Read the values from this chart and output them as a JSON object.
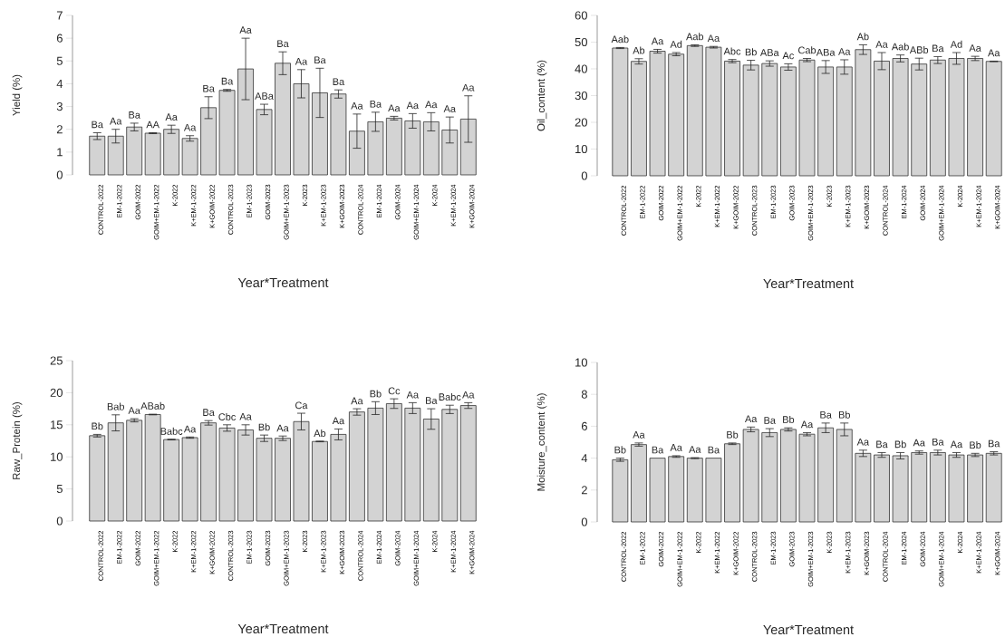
{
  "chart_data": [
    {
      "type": "bar",
      "ylabel": "Yield (%)",
      "xlabel": "Year*Treatment",
      "color": "#d3d3d3",
      "ylim": [
        0,
        7
      ],
      "yticks": [
        0,
        1,
        2,
        3,
        4,
        5,
        6,
        7
      ],
      "categories": [
        "CONTROL-2022",
        "EM-1-2022",
        "GOIM-2022",
        "GOIM+EM-1-2022",
        "K-2022",
        "K+EM-1-2022",
        "K+GOIM-2022",
        "CONTROL-2023",
        "EM-1-2023",
        "GOIM-2023",
        "GOIM+EM-1-2023",
        "K-2023",
        "K+EM-1-2023",
        "K+GOIM-2023",
        "CONTROL-2024",
        "EM-1-2024",
        "GOIM-2024",
        "GOIM+EM-1-2024",
        "K-2024",
        "K+EM-1-2024",
        "K+GOIM-2024"
      ],
      "values": [
        1.7,
        1.7,
        2.1,
        1.83,
        2.0,
        1.6,
        2.95,
        3.71,
        4.65,
        2.87,
        4.9,
        4.0,
        3.6,
        3.55,
        1.92,
        2.33,
        2.49,
        2.37,
        2.33,
        1.97,
        2.45
      ],
      "errors": [
        0.15,
        0.3,
        0.17,
        0.02,
        0.18,
        0.12,
        0.48,
        0.04,
        1.35,
        0.23,
        0.5,
        0.62,
        1.08,
        0.18,
        0.75,
        0.42,
        0.08,
        0.32,
        0.4,
        0.57,
        1.02
      ],
      "annotations": [
        {
          "text": "Ba",
          "x": "CONTROL-2022",
          "y": 1.85
        },
        {
          "text": "Aa",
          "x": "EM-1-2022",
          "y": 2.0
        },
        {
          "text": "Ba",
          "x": "GOIM-2022",
          "y": 2.27
        },
        {
          "text": "AA",
          "x": "GOIM+EM-1-2022",
          "y": 1.85
        },
        {
          "text": "Aa",
          "x": "K-2022",
          "y": 2.18
        },
        {
          "text": "Aa",
          "x": "K+EM-1-2022",
          "y": 1.72
        },
        {
          "text": "Ba",
          "x": "K+GOIM-2022",
          "y": 3.43
        },
        {
          "text": "Ba",
          "x": "CONTROL-2023",
          "y": 3.75
        },
        {
          "text": "Aa",
          "x": "EM-1-2023",
          "y": 6.0
        },
        {
          "text": "ABa",
          "x": "GOIM-2023",
          "y": 3.1
        },
        {
          "text": "Ba",
          "x": "GOIM+EM-1-2023",
          "y": 5.4
        },
        {
          "text": "Aa",
          "x": "K-2023",
          "y": 4.62
        },
        {
          "text": "Ba",
          "x": "K+EM-1-2023",
          "y": 4.68
        },
        {
          "text": "Ba",
          "x": "K+GOIM-2023",
          "y": 3.73
        },
        {
          "text": "Aa",
          "x": "CONTROL-2024",
          "y": 2.67
        },
        {
          "text": "Ba",
          "x": "EM-1-2024",
          "y": 2.75
        },
        {
          "text": "Aa",
          "x": "GOIM-2024",
          "y": 2.57
        },
        {
          "text": "Aa",
          "x": "GOIM+EM-1-2024",
          "y": 2.69
        },
        {
          "text": "Aa",
          "x": "K-2024",
          "y": 2.73
        },
        {
          "text": "Aa",
          "x": "K+EM-1-2024",
          "y": 2.54
        },
        {
          "text": "Aa",
          "x": "K+GOIM-2024",
          "y": 3.47
        }
      ]
    },
    {
      "type": "bar",
      "ylabel": "Oil_content (%)",
      "xlabel": "Year*Treatment",
      "color": "#d3d3d3",
      "ylim": [
        0,
        60
      ],
      "yticks": [
        0,
        10,
        20,
        30,
        40,
        50,
        60
      ],
      "categories": [
        "CONTROL-2022",
        "EM-1-2022",
        "GOIM-2022",
        "GOIM+EM-1-2022",
        "K-2022",
        "K+EM-1-2022",
        "K+GOIM-2022",
        "CONTROL-2023",
        "EM-1-2023",
        "GOIM-2023",
        "GOIM+EM-1-2023",
        "K-2023",
        "K+EM-1-2023",
        "K+GOIM-2023",
        "CONTROL-2024",
        "EM-1-2024",
        "GOIM-2024",
        "GOIM+EM-1-2024",
        "K-2024",
        "K+EM-1-2024",
        "K+GOIM-2024"
      ],
      "values": [
        47.8,
        42.8,
        46.6,
        45.5,
        48.7,
        48.1,
        42.9,
        41.4,
        42.0,
        40.7,
        43.3,
        40.7,
        40.7,
        47.2,
        42.9,
        43.9,
        41.8,
        43.3,
        43.9,
        43.9,
        42.8
      ],
      "errors": [
        0.2,
        1.0,
        0.7,
        0.6,
        0.3,
        0.3,
        0.6,
        1.8,
        1.0,
        1.2,
        0.6,
        2.4,
        2.7,
        1.8,
        3.2,
        1.3,
        2.2,
        1.3,
        2.2,
        0.8,
        0.1
      ],
      "annotations": [
        {
          "text": "Aab",
          "x": "CONTROL-2022",
          "y": 48
        },
        {
          "text": "Ab",
          "x": "EM-1-2022",
          "y": 43.8
        },
        {
          "text": "Aa",
          "x": "GOIM-2022",
          "y": 47.3
        },
        {
          "text": "Ad",
          "x": "GOIM+EM-1-2022",
          "y": 46.1
        },
        {
          "text": "Aab",
          "x": "K-2022",
          "y": 49
        },
        {
          "text": "Aa",
          "x": "K+EM-1-2022",
          "y": 48.4
        },
        {
          "text": "Abc",
          "x": "K+GOIM-2022",
          "y": 43.5
        },
        {
          "text": "Bb",
          "x": "CONTROL-2023",
          "y": 43.2
        },
        {
          "text": "ABa",
          "x": "EM-1-2023",
          "y": 43
        },
        {
          "text": "Ac",
          "x": "GOIM-2023",
          "y": 41.9
        },
        {
          "text": "Cab",
          "x": "GOIM+EM-1-2023",
          "y": 43.9
        },
        {
          "text": "ABa",
          "x": "K-2023",
          "y": 43.1
        },
        {
          "text": "Aa",
          "x": "K+EM-1-2023",
          "y": 43.4
        },
        {
          "text": "Ab",
          "x": "K+GOIM-2023",
          "y": 49
        },
        {
          "text": "Aa",
          "x": "CONTROL-2024",
          "y": 46.1
        },
        {
          "text": "Aab",
          "x": "EM-1-2024",
          "y": 45.2
        },
        {
          "text": "ABb",
          "x": "GOIM-2024",
          "y": 44
        },
        {
          "text": "Ba",
          "x": "GOIM+EM-1-2024",
          "y": 44.6
        },
        {
          "text": "Ad",
          "x": "K-2024",
          "y": 46.1
        },
        {
          "text": "Aa",
          "x": "K+EM-1-2024",
          "y": 44.7
        },
        {
          "text": "Aa",
          "x": "K+GOIM-2024",
          "y": 42.9
        }
      ]
    },
    {
      "type": "bar",
      "ylabel": "Raw_Protein (%)",
      "xlabel": "Year*Treatment",
      "color": "#d3d3d3",
      "ylim": [
        0,
        25
      ],
      "yticks": [
        0,
        5,
        10,
        15,
        20,
        25
      ],
      "categories": [
        "CONTROL-2022",
        "EM-1-2022",
        "GOIM-2022",
        "GOIM+EM-1-2022",
        "K-2022",
        "K+EM-1-2022",
        "K+GOIM-2022",
        "CONTROL-2023",
        "EM-1-2023",
        "GOIM-2023",
        "GOIM+EM-1-2023",
        "K-2023",
        "K+EM-1-2023",
        "K+GOIM-2023",
        "CONTROL-2024",
        "EM-1-2024",
        "GOIM-2024",
        "GOIM+EM-1-2024",
        "K-2024",
        "K+EM-1-2024",
        "K+GOIM-2024"
      ],
      "values": [
        13.3,
        15.3,
        15.7,
        16.6,
        12.7,
        13.0,
        15.3,
        14.5,
        14.2,
        12.9,
        12.9,
        15.5,
        12.4,
        13.5,
        17.0,
        17.6,
        18.3,
        17.6,
        15.9,
        17.4,
        18.0
      ],
      "errors": [
        0.2,
        1.25,
        0.25,
        0.05,
        0.05,
        0.1,
        0.35,
        0.5,
        0.8,
        0.5,
        0.35,
        1.3,
        0.05,
        0.85,
        0.5,
        1.0,
        0.75,
        0.85,
        1.6,
        0.65,
        0.45
      ],
      "annotations": [
        {
          "text": "Bb",
          "x": "CONTROL-2022",
          "y": 13.5
        },
        {
          "text": "Bab",
          "x": "EM-1-2022",
          "y": 16.55
        },
        {
          "text": "Aa",
          "x": "GOIM-2022",
          "y": 15.95
        },
        {
          "text": "ABab",
          "x": "GOIM+EM-1-2022",
          "y": 16.65
        },
        {
          "text": "Babc",
          "x": "K-2022",
          "y": 12.7
        },
        {
          "text": "Aa",
          "x": "K+EM-1-2022",
          "y": 13.05
        },
        {
          "text": "Ba",
          "x": "K+GOIM-2022",
          "y": 15.65
        },
        {
          "text": "Cbc",
          "x": "CONTROL-2023",
          "y": 14.95
        },
        {
          "text": "Aa",
          "x": "EM-1-2023",
          "y": 15
        },
        {
          "text": "Bb",
          "x": "GOIM-2023",
          "y": 13.35
        },
        {
          "text": "Aa",
          "x": "GOIM+EM-1-2023",
          "y": 13.2
        },
        {
          "text": "Ca",
          "x": "K-2023",
          "y": 16.75
        },
        {
          "text": "Ab",
          "x": "K+EM-1-2023",
          "y": 12.4
        },
        {
          "text": "Aa",
          "x": "K+GOIM-2023",
          "y": 14.35
        },
        {
          "text": "Aa",
          "x": "CONTROL-2024",
          "y": 17.45
        },
        {
          "text": "Bb",
          "x": "EM-1-2024",
          "y": 18.55
        },
        {
          "text": "Cc",
          "x": "GOIM-2024",
          "y": 19
        },
        {
          "text": "Aa",
          "x": "GOIM+EM-1-2024",
          "y": 18.4
        },
        {
          "text": "Ba",
          "x": "K-2024",
          "y": 17.5
        },
        {
          "text": "Babc",
          "x": "K+EM-1-2024",
          "y": 18.05
        },
        {
          "text": "Aa",
          "x": "K+GOIM-2024",
          "y": 18.4
        }
      ]
    },
    {
      "type": "bar",
      "ylabel": "Moisture_content (%)",
      "xlabel": "Year*Treatment",
      "color": "#d3d3d3",
      "ylim": [
        0,
        10
      ],
      "yticks": [
        0,
        2,
        4,
        6,
        8,
        10
      ],
      "categories": [
        "CONTROL-2022",
        "EM-1-2022",
        "GOIM-2022",
        "GOIM+EM-1-2022",
        "K-2022",
        "K+EM-1-2022",
        "K+GOIM-2022",
        "CONTROL-2023",
        "EM-1-2023",
        "GOIM-2023",
        "GOIM+EM-1-2023",
        "K-2023",
        "K+EM-1-2023",
        "K+GOIM-2023",
        "CONTROL-2024",
        "EM-1-2024",
        "GOIM-2024",
        "GOIM+EM-1-2024",
        "K-2024",
        "K+EM-1-2024",
        "K+GOIM-2024"
      ],
      "values": [
        3.9,
        4.85,
        4.0,
        4.1,
        4.0,
        4.0,
        4.9,
        5.8,
        5.6,
        5.8,
        5.5,
        5.9,
        5.8,
        4.3,
        4.2,
        4.15,
        4.35,
        4.35,
        4.2,
        4.2,
        4.3
      ],
      "errors": [
        0.1,
        0.1,
        null,
        0.05,
        0.03,
        null,
        0.05,
        0.15,
        0.25,
        0.1,
        0.1,
        0.3,
        0.4,
        0.2,
        0.15,
        0.2,
        0.1,
        0.15,
        0.15,
        0.1,
        0.1
      ],
      "annotations": [
        {
          "text": "Bb",
          "x": "CONTROL-2022",
          "y": 4.0
        },
        {
          "text": "Aa",
          "x": "EM-1-2022",
          "y": 4.95
        },
        {
          "text": "Ba",
          "x": "GOIM-2022",
          "y": 4.0
        },
        {
          "text": "Aa",
          "x": "GOIM+EM-1-2022",
          "y": 4.15
        },
        {
          "text": "Aa",
          "x": "K-2022",
          "y": 4.03
        },
        {
          "text": "Ba",
          "x": "K+EM-1-2022",
          "y": 4.0
        },
        {
          "text": "Bb",
          "x": "K+GOIM-2022",
          "y": 4.95
        },
        {
          "text": "Aa",
          "x": "CONTROL-2023",
          "y": 5.95
        },
        {
          "text": "Ba",
          "x": "EM-1-2023",
          "y": 5.85
        },
        {
          "text": "Bb",
          "x": "GOIM-2023",
          "y": 5.9
        },
        {
          "text": "Aa",
          "x": "GOIM+EM-1-2023",
          "y": 5.6
        },
        {
          "text": "Ba",
          "x": "K-2023",
          "y": 6.2
        },
        {
          "text": "Bb",
          "x": "K+EM-1-2023",
          "y": 6.2
        },
        {
          "text": "Aa",
          "x": "K+GOIM-2023",
          "y": 4.5
        },
        {
          "text": "Ba",
          "x": "CONTROL-2024",
          "y": 4.35
        },
        {
          "text": "Bb",
          "x": "EM-1-2024",
          "y": 4.35
        },
        {
          "text": "Aa",
          "x": "GOIM-2024",
          "y": 4.45
        },
        {
          "text": "Ba",
          "x": "GOIM+EM-1-2024",
          "y": 4.5
        },
        {
          "text": "Aa",
          "x": "K-2024",
          "y": 4.35
        },
        {
          "text": "Bb",
          "x": "K+EM-1-2024",
          "y": 4.3
        },
        {
          "text": "Ba",
          "x": "K+GOIM-2024",
          "y": 4.4
        }
      ]
    }
  ]
}
